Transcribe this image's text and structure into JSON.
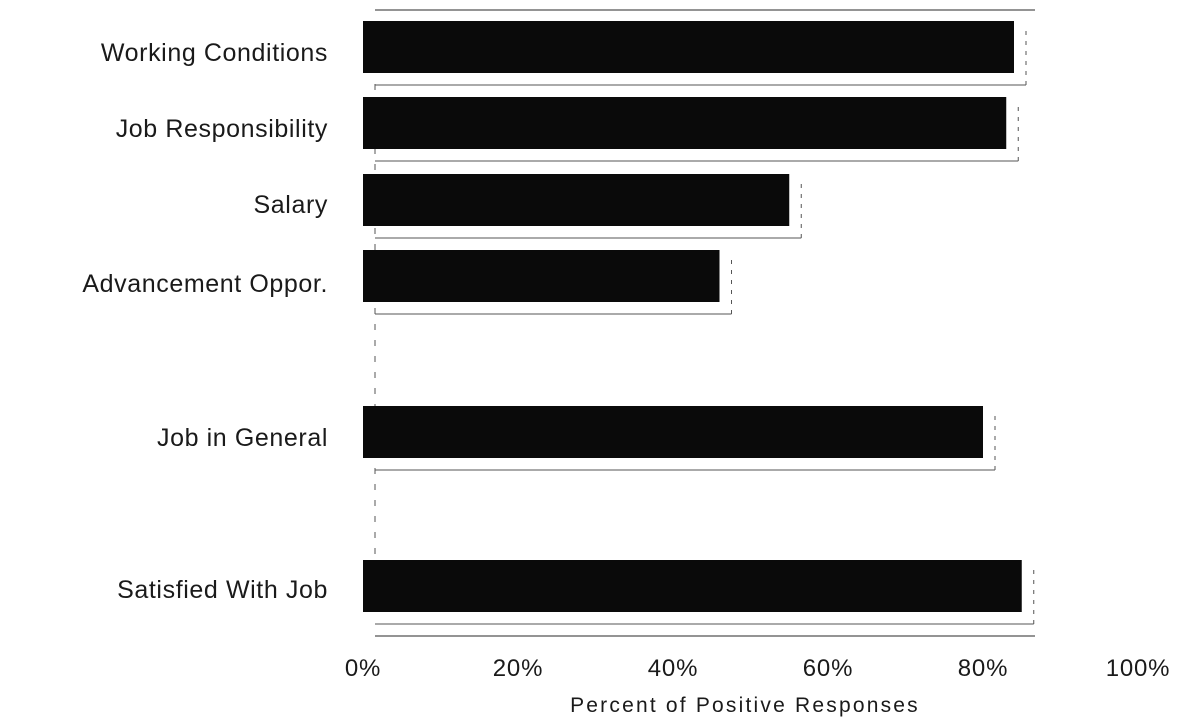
{
  "chart_data": {
    "type": "bar",
    "orientation": "horizontal",
    "categories": [
      "Working Conditions",
      "Job Responsibility",
      "Salary",
      "Advancement Oppor.",
      "Job in General",
      "Satisfied With Job"
    ],
    "values": [
      84,
      83,
      55,
      46,
      80,
      85
    ],
    "xlabel": "Percent of Positive Responses",
    "xticks": [
      "0%",
      "20%",
      "40%",
      "60%",
      "80%",
      "100%"
    ],
    "xlim": [
      0,
      100
    ],
    "grid": false,
    "legend": "none",
    "colors": {
      "bar": "#0a0a0a",
      "text": "#1a1a1a",
      "outline": "#555555"
    }
  }
}
